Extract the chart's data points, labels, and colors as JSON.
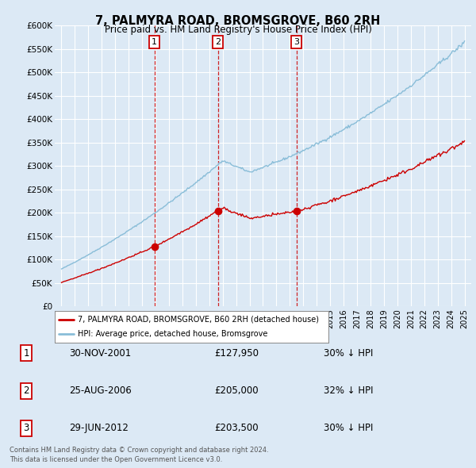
{
  "title": "7, PALMYRA ROAD, BROMSGROVE, B60 2RH",
  "subtitle": "Price paid vs. HM Land Registry's House Price Index (HPI)",
  "ylabel_ticks": [
    "£0",
    "£50K",
    "£100K",
    "£150K",
    "£200K",
    "£250K",
    "£300K",
    "£350K",
    "£400K",
    "£450K",
    "£500K",
    "£550K",
    "£600K"
  ],
  "ytick_values": [
    0,
    50000,
    100000,
    150000,
    200000,
    250000,
    300000,
    350000,
    400000,
    450000,
    500000,
    550000,
    600000
  ],
  "xmin": 1994.5,
  "xmax": 2025.5,
  "ymin": 0,
  "ymax": 600000,
  "background_color": "#dce9f5",
  "plot_bg_color": "#dce9f5",
  "hpi_line_color": "#89bdd8",
  "price_line_color": "#cc0000",
  "sale_marker_color": "#cc0000",
  "vline_color": "#cc0000",
  "grid_color": "#ffffff",
  "sale_points": [
    {
      "year": 2001.917,
      "price": 127950,
      "label": "1"
    },
    {
      "year": 2006.646,
      "price": 205000,
      "label": "2"
    },
    {
      "year": 2012.495,
      "price": 203500,
      "label": "3"
    }
  ],
  "table_rows": [
    {
      "num": "1",
      "date": "30-NOV-2001",
      "price": "£127,950",
      "hpi": "30% ↓ HPI"
    },
    {
      "num": "2",
      "date": "25-AUG-2006",
      "price": "£205,000",
      "hpi": "32% ↓ HPI"
    },
    {
      "num": "3",
      "date": "29-JUN-2012",
      "price": "£203,500",
      "hpi": "30% ↓ HPI"
    }
  ],
  "legend_line1": "7, PALMYRA ROAD, BROMSGROVE, B60 2RH (detached house)",
  "legend_line2": "HPI: Average price, detached house, Bromsgrove",
  "footer1": "Contains HM Land Registry data © Crown copyright and database right 2024.",
  "footer2": "This data is licensed under the Open Government Licence v3.0."
}
